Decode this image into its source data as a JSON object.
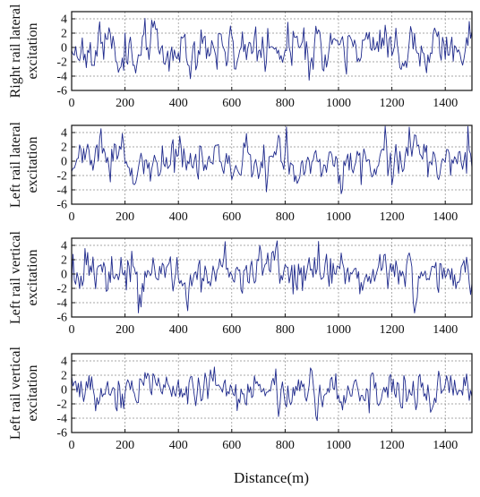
{
  "figure": {
    "xlabel": "Distance(m)",
    "line_color": "#1f2a8c"
  },
  "chart_data": [
    {
      "type": "line",
      "ylabel_lines": [
        "Right rail lateral",
        "excitation"
      ],
      "xlim": [
        0,
        1500
      ],
      "ylim": [
        -6,
        5
      ],
      "xticks": [
        0,
        200,
        400,
        600,
        800,
        1000,
        1200,
        1400
      ],
      "yticks": [
        -6,
        -4,
        -2,
        0,
        2,
        4
      ],
      "grid": true,
      "series": [
        {
          "color": "#1f2a8c",
          "x_step": 5,
          "seed": 11,
          "amplitude": 1.5,
          "values": []
        }
      ]
    },
    {
      "type": "line",
      "ylabel_lines": [
        "Left rail lateral",
        "excitation"
      ],
      "xlim": [
        0,
        1500
      ],
      "ylim": [
        -6,
        5
      ],
      "xticks": [
        0,
        200,
        400,
        600,
        800,
        1000,
        1200,
        1400
      ],
      "yticks": [
        -6,
        -4,
        -2,
        0,
        2,
        4
      ],
      "grid": true,
      "series": [
        {
          "color": "#1f2a8c",
          "x_step": 5,
          "seed": 23,
          "amplitude": 1.3,
          "values": []
        }
      ]
    },
    {
      "type": "line",
      "ylabel_lines": [
        "Left rail vertical",
        "excitation"
      ],
      "xlim": [
        0,
        1500
      ],
      "ylim": [
        -6,
        5
      ],
      "xticks": [
        0,
        200,
        400,
        600,
        800,
        1000,
        1200,
        1400
      ],
      "yticks": [
        -6,
        -4,
        -2,
        0,
        2,
        4
      ],
      "grid": true,
      "series": [
        {
          "color": "#1f2a8c",
          "x_step": 5,
          "seed": 37,
          "amplitude": 1.4,
          "values": []
        }
      ]
    },
    {
      "type": "line",
      "ylabel_lines": [
        "Left rail vertical",
        "excitation"
      ],
      "xlim": [
        0,
        1500
      ],
      "ylim": [
        -6,
        5
      ],
      "xticks": [
        0,
        200,
        400,
        600,
        800,
        1000,
        1200,
        1400
      ],
      "yticks": [
        -6,
        -4,
        -2,
        0,
        2,
        4
      ],
      "grid": true,
      "series": [
        {
          "color": "#1f2a8c",
          "x_step": 5,
          "seed": 53,
          "amplitude": 1.3,
          "values": []
        }
      ]
    }
  ]
}
